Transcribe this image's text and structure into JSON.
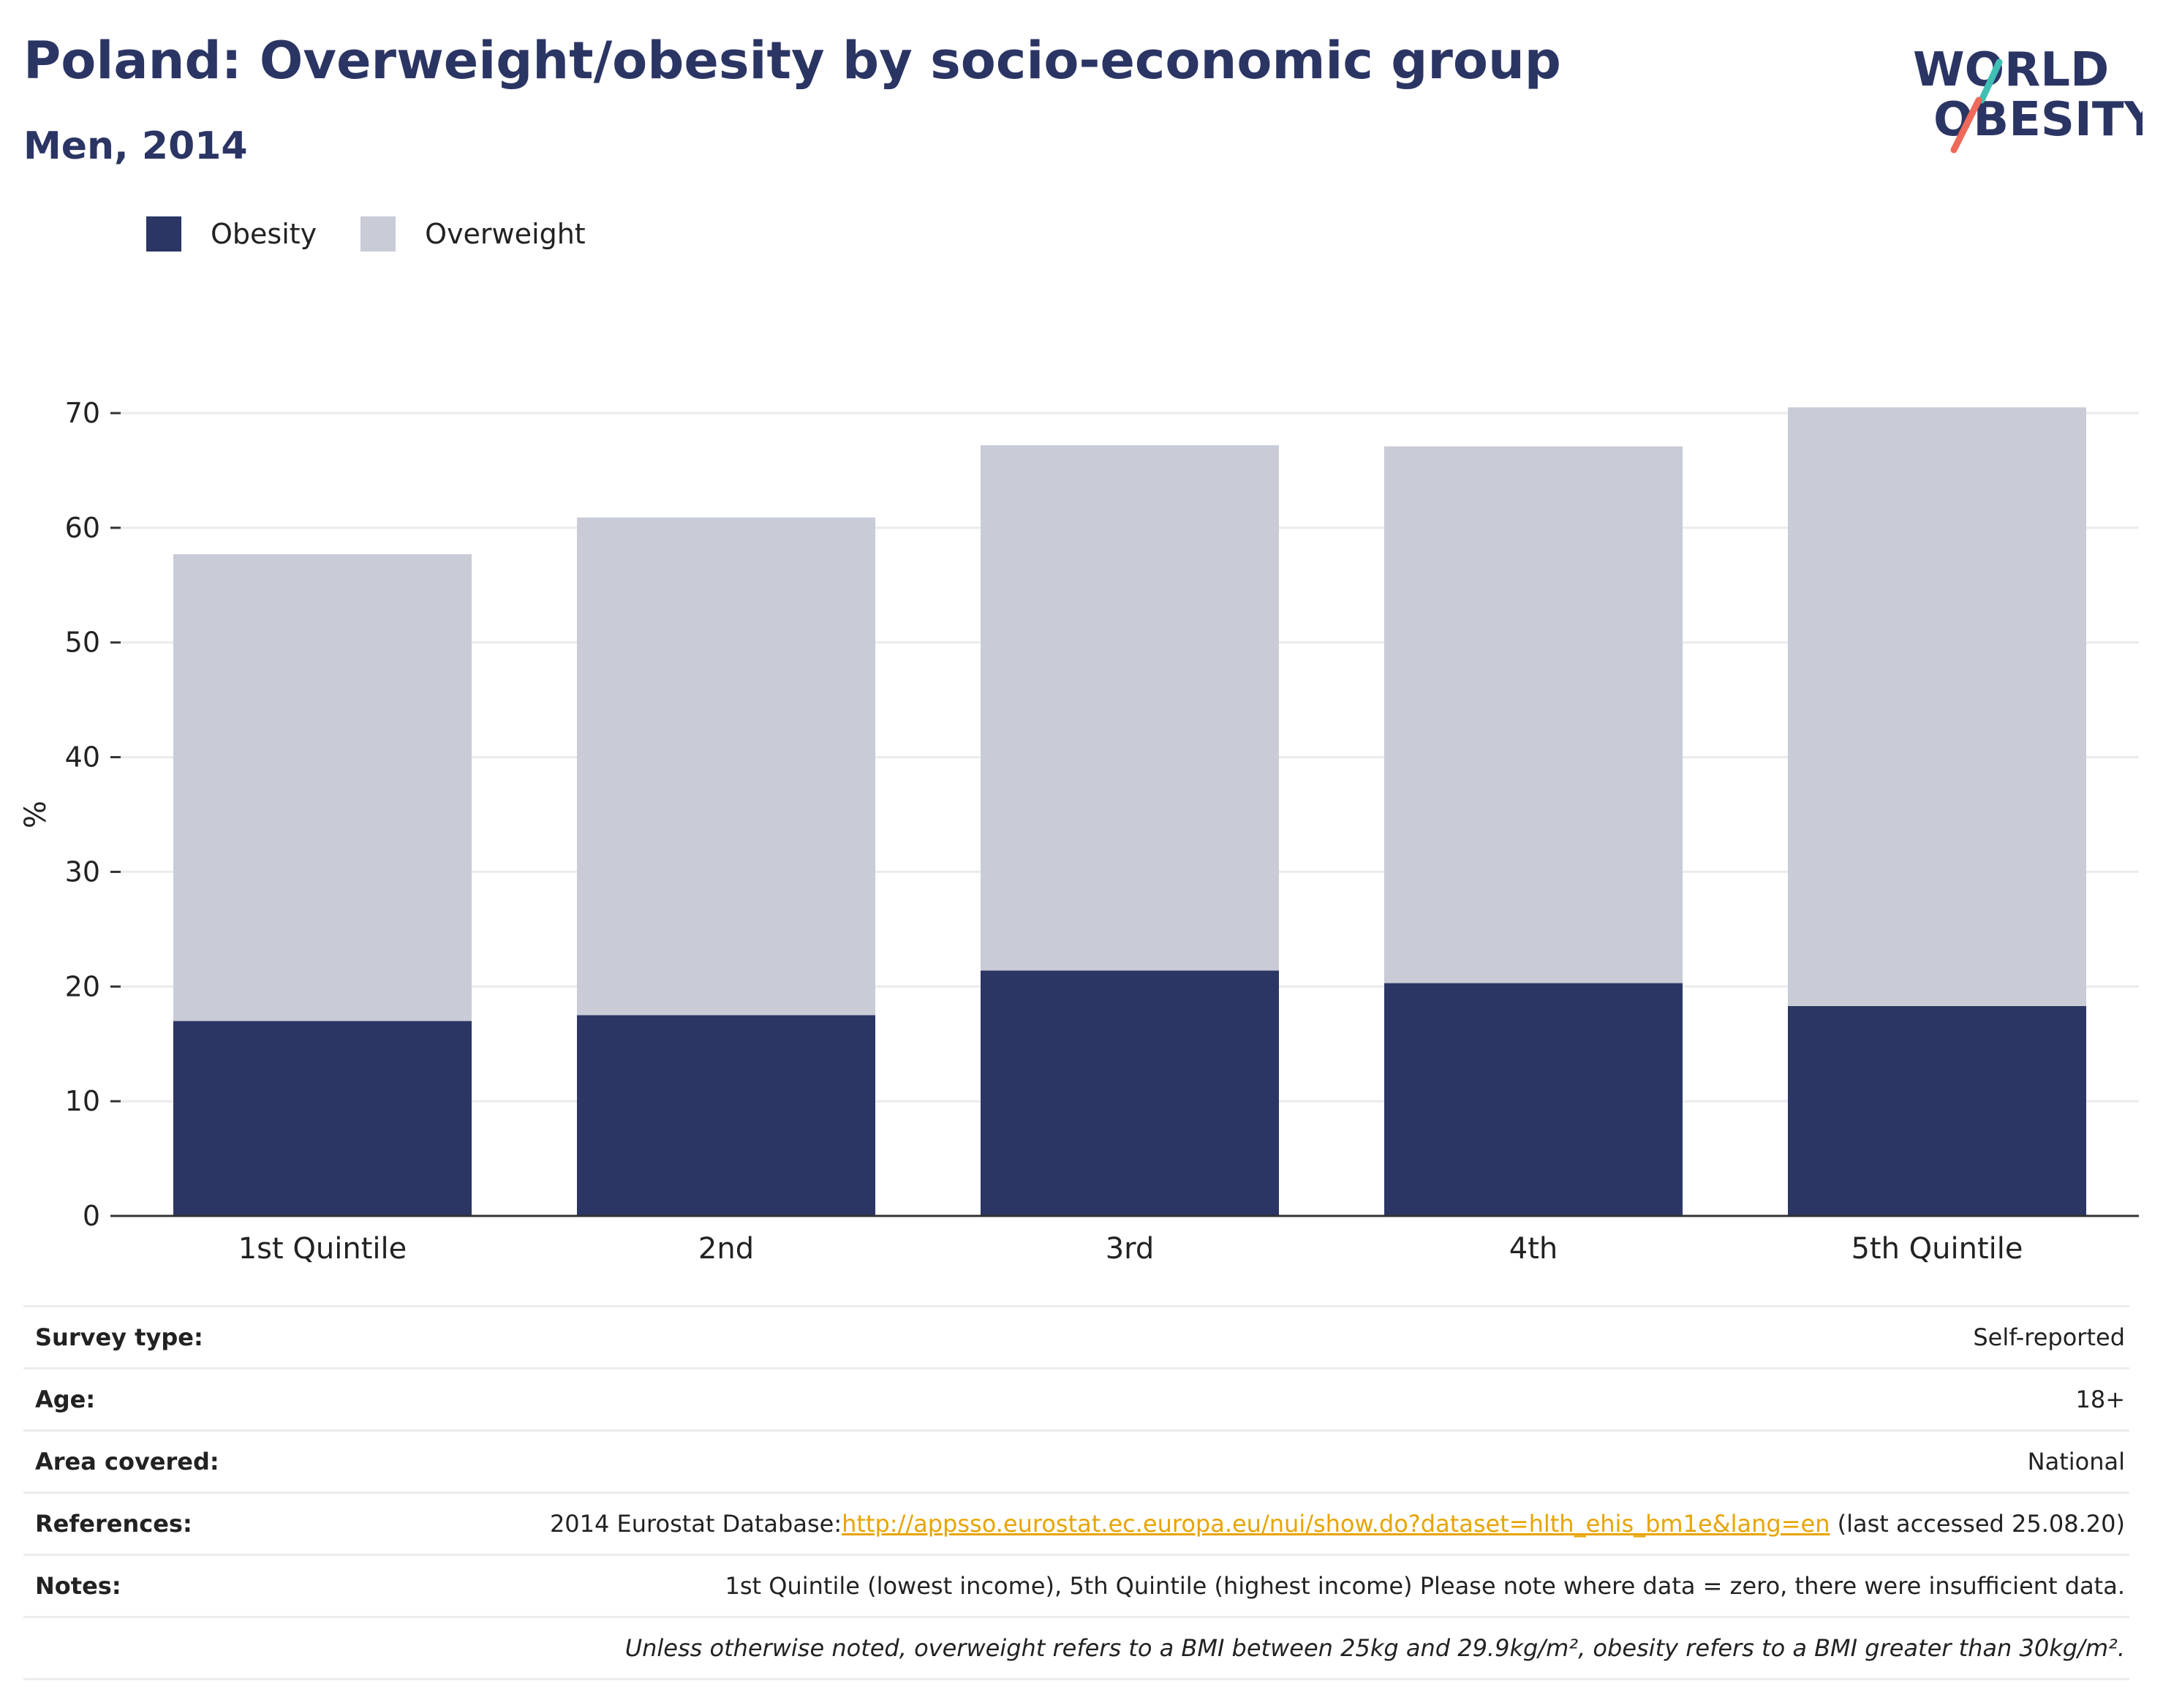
{
  "header": {
    "title": "Poland: Overweight/obesity by socio-economic group",
    "subtitle": "Men, 2014"
  },
  "logo": {
    "line1": "WORLD",
    "line2": "OBESITY"
  },
  "colors": {
    "obesity": "#2b3664",
    "overweight": "#c9cbd7",
    "title": "#2b3564",
    "link": "#e8a400"
  },
  "chart_data": {
    "type": "bar",
    "stacked": true,
    "categories": [
      "1st Quintile",
      "2nd",
      "3rd",
      "4th",
      "5th Quintile"
    ],
    "series": [
      {
        "name": "Obesity",
        "values": [
          17.0,
          17.5,
          21.4,
          20.3,
          18.3
        ]
      },
      {
        "name": "Overweight",
        "values": [
          40.7,
          43.4,
          45.8,
          46.8,
          52.2
        ]
      }
    ],
    "ylabel": "%",
    "ylim": [
      0,
      70
    ],
    "yticks": [
      0,
      10,
      20,
      30,
      40,
      50,
      60,
      70
    ],
    "grid": true,
    "legend": "top-left"
  },
  "info": [
    {
      "key": "Survey type:",
      "value": "Self-reported"
    },
    {
      "key": "Age:",
      "value": "18+"
    },
    {
      "key": "Area covered:",
      "value": "National"
    },
    {
      "key": "References:",
      "value_prefix": "2014 Eurostat Database:",
      "link": "http://appsso.eurostat.ec.europa.eu/nui/show.do?dataset=hlth_ehis_bm1e&lang=en",
      "value_suffix": " (last accessed 25.08.20)"
    },
    {
      "key": "Notes:",
      "value": "1st Quintile (lowest income), 5th Quintile (highest income) Please note where data = zero, there were insufficient data."
    },
    {
      "key": "",
      "value": "Unless otherwise noted, overweight refers to a BMI between 25kg and 29.9kg/m², obesity refers to a BMI greater than 30kg/m²."
    }
  ]
}
